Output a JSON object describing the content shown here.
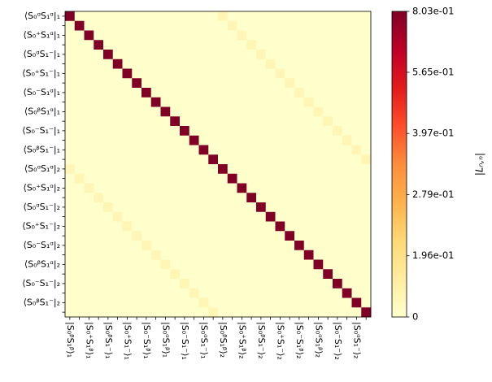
{
  "chart_data": {
    "type": "heatmap",
    "rows": [
      "⟨S₀ᵅS₁ᵅ|₁",
      null,
      "⟨S₀⁺S₁ᵅ|₁",
      null,
      "⟨S₀ᵅS₁⁻|₁",
      null,
      "⟨S₀⁺S₁⁻|₁",
      null,
      "⟨S₀⁻S₁ᵅ|₁",
      null,
      "⟨S₀ᵝS₁ᵅ|₁",
      null,
      "⟨S₀⁻S₁⁻|₁",
      null,
      "⟨S₀ᵝS₁⁻|₁",
      null,
      "⟨S₀ᵅS₁ᵅ|₂",
      null,
      "⟨S₀⁺S₁ᵅ|₂",
      null,
      "⟨S₀ᵅS₁⁻|₂",
      null,
      "⟨S₀⁺S₁⁻|₂",
      null,
      "⟨S₀⁻S₁ᵅ|₂",
      null,
      "⟨S₀ᵝS₁ᵅ|₂",
      null,
      "⟨S₀⁻S₁⁻|₂",
      null,
      "⟨S₀ᵝS₁⁻|₂",
      null
    ],
    "columns": [
      "|S₀ᵝS₁ᵝ⟩₁",
      null,
      "|S₀⁺S₁ᵝ⟩₁",
      null,
      "|S₀ᵝS₁⁻⟩₁",
      null,
      "|S₀⁺S₁⁻⟩₁",
      null,
      "|S₀⁻S₁ᵝ⟩₁",
      null,
      "|S₀ᵅS₁ᵝ⟩₁",
      null,
      "|S₀⁻S₁⁻⟩₁",
      null,
      "|S₀ᵅS₁⁻⟩₁",
      null,
      "|S₀ᵝS₁ᵝ⟩₂",
      null,
      "|S₀⁺S₁ᵝ⟩₂",
      null,
      "|S₀ᵝS₁⁻⟩₂",
      null,
      "|S₀⁺S₁⁻⟩₂",
      null,
      "|S₀⁻S₁ᵝ⟩₂",
      null,
      "|S₀ᵅS₁ᵝ⟩₂",
      null,
      "|S₀⁻S₁⁻⟩₂",
      null,
      "|S₀ᵅS₁⁻⟩₂",
      null
    ],
    "z": [
      [
        0.803,
        0,
        0,
        0,
        0,
        0,
        0,
        0,
        0,
        0,
        0,
        0,
        0,
        0,
        0,
        0,
        0.06,
        0,
        0,
        0,
        0,
        0,
        0,
        0,
        0,
        0,
        0,
        0,
        0,
        0,
        0,
        0
      ],
      [
        0,
        0.803,
        0,
        0,
        0,
        0,
        0,
        0,
        0,
        0,
        0,
        0,
        0,
        0,
        0,
        0,
        0,
        0.06,
        0,
        0,
        0,
        0,
        0,
        0,
        0,
        0,
        0,
        0,
        0,
        0,
        0,
        0
      ],
      [
        0,
        0,
        0.803,
        0,
        0,
        0,
        0,
        0,
        0,
        0,
        0,
        0,
        0,
        0,
        0,
        0,
        0,
        0,
        0.06,
        0,
        0,
        0,
        0,
        0,
        0,
        0,
        0,
        0,
        0,
        0,
        0,
        0
      ],
      [
        0,
        0,
        0,
        0.803,
        0,
        0,
        0,
        0,
        0,
        0,
        0,
        0,
        0,
        0,
        0,
        0,
        0,
        0,
        0,
        0.06,
        0,
        0,
        0,
        0,
        0,
        0,
        0,
        0,
        0,
        0,
        0,
        0
      ],
      [
        0,
        0,
        0,
        0,
        0.803,
        0,
        0,
        0,
        0,
        0,
        0,
        0,
        0,
        0,
        0,
        0,
        0,
        0,
        0,
        0,
        0.06,
        0,
        0,
        0,
        0,
        0,
        0,
        0,
        0,
        0,
        0,
        0
      ],
      [
        0,
        0,
        0,
        0,
        0,
        0.803,
        0,
        0,
        0,
        0,
        0,
        0,
        0,
        0,
        0,
        0,
        0,
        0,
        0,
        0,
        0,
        0.06,
        0,
        0,
        0,
        0,
        0,
        0,
        0,
        0,
        0,
        0
      ],
      [
        0,
        0,
        0,
        0,
        0,
        0,
        0.803,
        0,
        0,
        0,
        0,
        0,
        0,
        0,
        0,
        0,
        0,
        0,
        0,
        0,
        0,
        0,
        0.06,
        0,
        0,
        0,
        0,
        0,
        0,
        0,
        0,
        0
      ],
      [
        0,
        0,
        0,
        0,
        0,
        0,
        0,
        0.803,
        0,
        0,
        0,
        0,
        0,
        0,
        0,
        0,
        0,
        0,
        0,
        0,
        0,
        0,
        0,
        0.06,
        0,
        0,
        0,
        0,
        0,
        0,
        0,
        0
      ],
      [
        0,
        0,
        0,
        0,
        0,
        0,
        0,
        0,
        0.803,
        0,
        0,
        0,
        0,
        0,
        0,
        0,
        0,
        0,
        0,
        0,
        0,
        0,
        0,
        0,
        0.06,
        0,
        0,
        0,
        0,
        0,
        0,
        0
      ],
      [
        0,
        0,
        0,
        0,
        0,
        0,
        0,
        0,
        0,
        0.803,
        0,
        0,
        0,
        0,
        0,
        0,
        0,
        0,
        0,
        0,
        0,
        0,
        0,
        0,
        0,
        0.06,
        0,
        0,
        0,
        0,
        0,
        0
      ],
      [
        0,
        0,
        0,
        0,
        0,
        0,
        0,
        0,
        0,
        0,
        0.803,
        0,
        0,
        0,
        0,
        0,
        0,
        0,
        0,
        0,
        0,
        0,
        0,
        0,
        0,
        0,
        0.06,
        0,
        0,
        0,
        0,
        0
      ],
      [
        0,
        0,
        0,
        0,
        0,
        0,
        0,
        0,
        0,
        0,
        0,
        0.803,
        0,
        0,
        0,
        0,
        0,
        0,
        0,
        0,
        0,
        0,
        0,
        0,
        0,
        0,
        0,
        0.06,
        0,
        0,
        0,
        0
      ],
      [
        0,
        0,
        0,
        0,
        0,
        0,
        0,
        0,
        0,
        0,
        0,
        0,
        0.803,
        0,
        0,
        0,
        0,
        0,
        0,
        0,
        0,
        0,
        0,
        0,
        0,
        0,
        0,
        0,
        0.06,
        0,
        0,
        0
      ],
      [
        0,
        0,
        0,
        0,
        0,
        0,
        0,
        0,
        0,
        0,
        0,
        0,
        0,
        0.803,
        0,
        0,
        0,
        0,
        0,
        0,
        0,
        0,
        0,
        0,
        0,
        0,
        0,
        0,
        0,
        0.06,
        0,
        0
      ],
      [
        0,
        0,
        0,
        0,
        0,
        0,
        0,
        0,
        0,
        0,
        0,
        0,
        0,
        0,
        0.803,
        0,
        0,
        0,
        0,
        0,
        0,
        0,
        0,
        0,
        0,
        0,
        0,
        0,
        0,
        0,
        0.06,
        0
      ],
      [
        0,
        0,
        0,
        0,
        0,
        0,
        0,
        0,
        0,
        0,
        0,
        0,
        0,
        0,
        0,
        0.803,
        0,
        0,
        0,
        0,
        0,
        0,
        0,
        0,
        0,
        0,
        0,
        0,
        0,
        0,
        0,
        0.06
      ],
      [
        0.06,
        0,
        0,
        0,
        0,
        0,
        0,
        0,
        0,
        0,
        0,
        0,
        0,
        0,
        0,
        0,
        0.803,
        0,
        0,
        0,
        0,
        0,
        0,
        0,
        0,
        0,
        0,
        0,
        0,
        0,
        0,
        0
      ],
      [
        0,
        0.06,
        0,
        0,
        0,
        0,
        0,
        0,
        0,
        0,
        0,
        0,
        0,
        0,
        0,
        0,
        0,
        0.803,
        0,
        0,
        0,
        0,
        0,
        0,
        0,
        0,
        0,
        0,
        0,
        0,
        0,
        0
      ],
      [
        0,
        0,
        0.06,
        0,
        0,
        0,
        0,
        0,
        0,
        0,
        0,
        0,
        0,
        0,
        0,
        0,
        0,
        0,
        0.803,
        0,
        0,
        0,
        0,
        0,
        0,
        0,
        0,
        0,
        0,
        0,
        0,
        0
      ],
      [
        0,
        0,
        0,
        0.06,
        0,
        0,
        0,
        0,
        0,
        0,
        0,
        0,
        0,
        0,
        0,
        0,
        0,
        0,
        0,
        0.803,
        0,
        0,
        0,
        0,
        0,
        0,
        0,
        0,
        0,
        0,
        0,
        0
      ],
      [
        0,
        0,
        0,
        0,
        0.06,
        0,
        0,
        0,
        0,
        0,
        0,
        0,
        0,
        0,
        0,
        0,
        0,
        0,
        0,
        0,
        0.803,
        0,
        0,
        0,
        0,
        0,
        0,
        0,
        0,
        0,
        0,
        0
      ],
      [
        0,
        0,
        0,
        0,
        0,
        0.06,
        0,
        0,
        0,
        0,
        0,
        0,
        0,
        0,
        0,
        0,
        0,
        0,
        0,
        0,
        0,
        0.803,
        0,
        0,
        0,
        0,
        0,
        0,
        0,
        0,
        0,
        0
      ],
      [
        0,
        0,
        0,
        0,
        0,
        0,
        0.06,
        0,
        0,
        0,
        0,
        0,
        0,
        0,
        0,
        0,
        0,
        0,
        0,
        0,
        0,
        0,
        0.803,
        0,
        0,
        0,
        0,
        0,
        0,
        0,
        0,
        0
      ],
      [
        0,
        0,
        0,
        0,
        0,
        0,
        0,
        0.06,
        0,
        0,
        0,
        0,
        0,
        0,
        0,
        0,
        0,
        0,
        0,
        0,
        0,
        0,
        0,
        0.803,
        0,
        0,
        0,
        0,
        0,
        0,
        0,
        0
      ],
      [
        0,
        0,
        0,
        0,
        0,
        0,
        0,
        0,
        0.06,
        0,
        0,
        0,
        0,
        0,
        0,
        0,
        0,
        0,
        0,
        0,
        0,
        0,
        0,
        0,
        0.803,
        0,
        0,
        0,
        0,
        0,
        0,
        0
      ],
      [
        0,
        0,
        0,
        0,
        0,
        0,
        0,
        0,
        0,
        0.06,
        0,
        0,
        0,
        0,
        0,
        0,
        0,
        0,
        0,
        0,
        0,
        0,
        0,
        0,
        0,
        0.803,
        0,
        0,
        0,
        0,
        0,
        0
      ],
      [
        0,
        0,
        0,
        0,
        0,
        0,
        0,
        0,
        0,
        0,
        0.06,
        0,
        0,
        0,
        0,
        0,
        0,
        0,
        0,
        0,
        0,
        0,
        0,
        0,
        0,
        0,
        0.803,
        0,
        0,
        0,
        0,
        0
      ],
      [
        0,
        0,
        0,
        0,
        0,
        0,
        0,
        0,
        0,
        0,
        0,
        0.06,
        0,
        0,
        0,
        0,
        0,
        0,
        0,
        0,
        0,
        0,
        0,
        0,
        0,
        0,
        0,
        0.803,
        0,
        0,
        0,
        0
      ],
      [
        0,
        0,
        0,
        0,
        0,
        0,
        0,
        0,
        0,
        0,
        0,
        0,
        0.06,
        0,
        0,
        0,
        0,
        0,
        0,
        0,
        0,
        0,
        0,
        0,
        0,
        0,
        0,
        0,
        0.803,
        0,
        0,
        0
      ],
      [
        0,
        0,
        0,
        0,
        0,
        0,
        0,
        0,
        0,
        0,
        0,
        0,
        0,
        0.06,
        0,
        0,
        0,
        0,
        0,
        0,
        0,
        0,
        0,
        0,
        0,
        0,
        0,
        0,
        0,
        0.803,
        0,
        0
      ],
      [
        0,
        0,
        0,
        0,
        0,
        0,
        0,
        0,
        0,
        0,
        0,
        0,
        0,
        0,
        0.06,
        0,
        0,
        0,
        0,
        0,
        0,
        0,
        0,
        0,
        0,
        0,
        0,
        0,
        0,
        0,
        0.803,
        0
      ],
      [
        0,
        0,
        0,
        0,
        0,
        0,
        0,
        0,
        0,
        0,
        0,
        0,
        0,
        0,
        0,
        0.06,
        0,
        0,
        0,
        0,
        0,
        0,
        0,
        0,
        0,
        0,
        0,
        0,
        0,
        0,
        0,
        0.803
      ]
    ],
    "colormap": [
      "#ffffcc",
      "#ffeda0",
      "#fed976",
      "#feb24c",
      "#fd8d3c",
      "#fc4e2a",
      "#e31a1c",
      "#bd0026",
      "#800026"
    ],
    "clim": [
      0,
      0.803
    ],
    "colorbar_scale": "symlog",
    "colorbar_ticks": [
      0,
      {
        "value": 0.196,
        "label": "1.96e-01"
      },
      {
        "value": 0.279,
        "label": "2.79e-01"
      },
      {
        "value": 0.397,
        "label": "3.97e-01"
      },
      {
        "value": 0.565,
        "label": "5.65e-01"
      },
      {
        "value": 0.803,
        "label": "8.03e-01"
      }
    ],
    "colorbar_label": "|Lₙ,ₙ|"
  }
}
